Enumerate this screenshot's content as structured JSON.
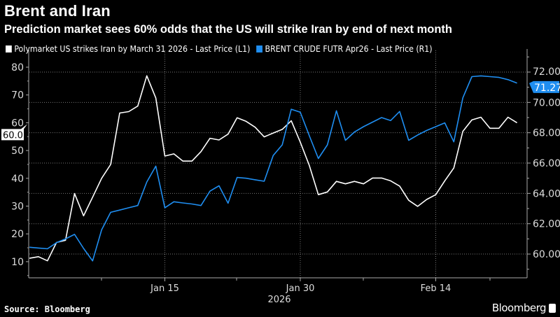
{
  "title": "Brent and Iran",
  "subtitle": "Prediction market sees 60% odds that the US will strike Iran by end of next month",
  "source": "Source: Bloomberg",
  "brand": "Bloomberg",
  "chart_data": {
    "type": "line",
    "x_start": "2025-12-31",
    "x_interval": "1 day",
    "x_ticks": [
      {
        "date": "2026-01-15",
        "label": "Jan 15"
      },
      {
        "date": "2026-01-30",
        "label": "Jan 30"
      },
      {
        "date": "2026-02-14",
        "label": "Feb 14"
      }
    ],
    "x_year_label": "2026",
    "grid": true,
    "legend_position": "top-left",
    "left_axis": {
      "ticks": [
        "10",
        "20",
        "30",
        "40",
        "50",
        "60",
        "70",
        "80"
      ],
      "ylim": [
        4,
        83.5
      ]
    },
    "right_axis": {
      "ticks": [
        "60.00",
        "62.00",
        "64.00",
        "66.00",
        "68.00",
        "70.00",
        "72.00"
      ],
      "ylim": [
        58.4,
        73
      ]
    },
    "series": [
      {
        "name": "Polymarket US strikes Iran by March 31 2026 - Last Price (L1)",
        "axis": "left",
        "color": "#ffffff",
        "last_label": "60.0",
        "values": [
          11.2,
          11.8,
          10.3,
          16.9,
          17.7,
          34.5,
          26.5,
          33.2,
          40,
          45,
          63.5,
          64,
          66,
          76.9,
          68.9,
          48,
          48.8,
          46.2,
          46.2,
          49.6,
          54.4,
          53.8,
          55.9,
          61.8,
          60.5,
          58.4,
          54.9,
          56.3,
          57.6,
          60.7,
          53,
          44.6,
          34.1,
          35.1,
          38.9,
          38,
          38.9,
          38,
          40.1,
          40.1,
          39.1,
          37.2,
          32.1,
          29.9,
          32.4,
          34.1,
          39.1,
          43.7,
          56.9,
          61,
          62,
          58,
          58,
          62,
          60
        ]
      },
      {
        "name": "BRENT CRUDE FUTR Apr26 - Last Price (R1)",
        "axis": "right",
        "color": "#1f8ef1",
        "last_label": "71.27",
        "values": [
          60.45,
          60.4,
          60.35,
          60.75,
          61.0,
          61.3,
          60.37,
          59.55,
          61.6,
          62.75,
          62.9,
          63.05,
          63.2,
          64.75,
          65.8,
          63.05,
          63.45,
          63.37,
          63.3,
          63.2,
          64.15,
          64.5,
          63.35,
          65.05,
          65.0,
          64.9,
          64.8,
          66.5,
          67.2,
          69.55,
          69.35,
          67.8,
          66.3,
          67.2,
          69.45,
          67.5,
          68.05,
          68.4,
          68.7,
          69.0,
          68.8,
          69.4,
          67.5,
          67.85,
          68.15,
          68.4,
          68.65,
          67.4,
          70.3,
          71.7,
          71.75,
          71.7,
          71.65,
          71.5,
          71.27
        ]
      }
    ]
  }
}
